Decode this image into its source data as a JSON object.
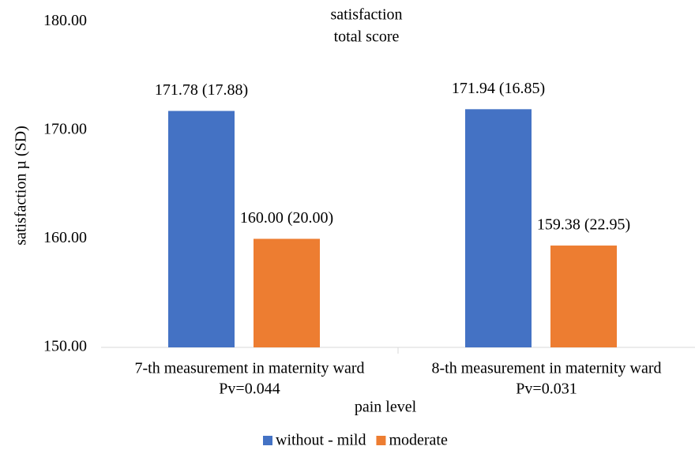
{
  "chart_data": {
    "type": "bar",
    "title": [
      "satisfaction",
      "total score"
    ],
    "categories": [
      "7-th measurement in maternity ward",
      "8-th measurement in maternity ward"
    ],
    "category_notes": [
      "Pv=0.044",
      "Pv=0.031"
    ],
    "x_label": "pain level",
    "y_label": "satisfaction µ (SD)",
    "series": [
      {
        "name": "without - mild",
        "color": "#4472c4",
        "values": [
          171.78,
          171.94
        ],
        "value_labels": [
          "171.78 (17.88)",
          "171.94 (16.85)"
        ]
      },
      {
        "name": "moderate",
        "color": "#ed7d31",
        "values": [
          160.0,
          159.38
        ],
        "value_labels": [
          "160.00 (20.00)",
          "159.38 (22.95)"
        ]
      }
    ],
    "ylim": [
      150,
      180
    ],
    "yticks": [
      {
        "value": 150,
        "label": "150.00"
      },
      {
        "value": 160,
        "label": "160.00"
      },
      {
        "value": 170,
        "label": "170.00"
      },
      {
        "value": 180,
        "label": "180.00"
      }
    ],
    "grid": false,
    "legend": "bottom"
  }
}
